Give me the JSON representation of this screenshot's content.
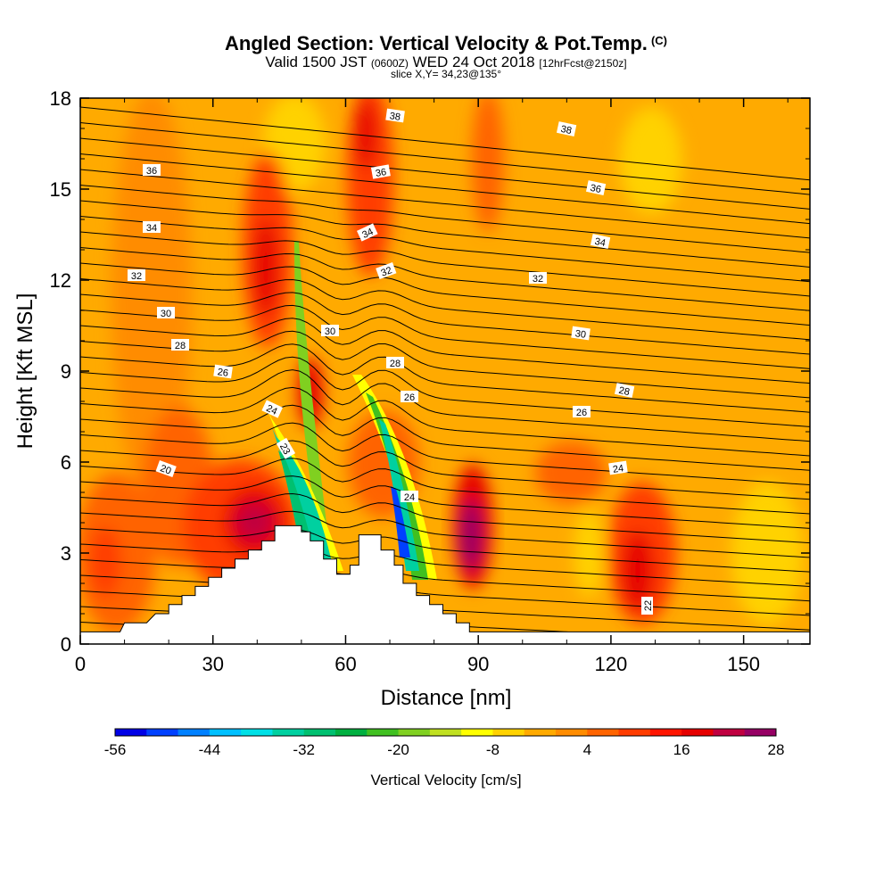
{
  "header": {
    "title": "Angled Section: Vertical Velocity & Pot.Temp.",
    "copyright": "(C)",
    "valid_prefix": "Valid 1500 JST",
    "valid_utc": "(0600Z)",
    "valid_date": "WED 24 Oct 2018",
    "forecast": "[12hrFcst@2150z]",
    "slice": "slice X,Y= 34,23@135°"
  },
  "chart_data": {
    "type": "heatmap",
    "xlabel": "Distance [nm]",
    "ylabel": "Height [Kft MSL]",
    "xlim": [
      0,
      165
    ],
    "ylim": [
      0,
      18
    ],
    "xticks": [
      0,
      30,
      60,
      90,
      120,
      150
    ],
    "yticks": [
      0,
      3,
      6,
      9,
      12,
      15,
      18
    ],
    "colorbar": {
      "label": "Vertical Velocity [cm/s]",
      "min": -56,
      "max": 28,
      "step": 4,
      "tick_labels": [
        "-56",
        "-44",
        "-32",
        "-20",
        "-8",
        "4",
        "16",
        "28"
      ],
      "colors": [
        "#0000e6",
        "#0040ff",
        "#0080ff",
        "#00c0ff",
        "#00e0e6",
        "#00d0a0",
        "#00c070",
        "#00b040",
        "#40c020",
        "#80d020",
        "#c0e020",
        "#ffff00",
        "#ffd200",
        "#ffaa00",
        "#ff8c00",
        "#ff6400",
        "#ff3c00",
        "#ff1400",
        "#e60000",
        "#c00040",
        "#960064"
      ]
    },
    "theta_contour_labels": [
      "38",
      "38",
      "36",
      "36",
      "36",
      "34",
      "34",
      "34",
      "32",
      "32",
      "32",
      "30",
      "30",
      "30",
      "28",
      "28",
      "28",
      "26",
      "26",
      "26",
      "24",
      "24",
      "24",
      "23",
      "22",
      "20"
    ],
    "terrain_top_kft": [
      [
        0,
        0.4
      ],
      [
        9,
        0.4
      ],
      [
        10,
        0.7
      ],
      [
        15,
        0.7
      ],
      [
        17,
        1.0
      ],
      [
        20,
        1.0
      ],
      [
        20,
        1.3
      ],
      [
        23,
        1.3
      ],
      [
        23,
        1.6
      ],
      [
        26,
        1.6
      ],
      [
        26,
        1.9
      ],
      [
        29,
        1.9
      ],
      [
        29,
        2.2
      ],
      [
        32,
        2.2
      ],
      [
        32,
        2.5
      ],
      [
        35,
        2.5
      ],
      [
        35,
        2.8
      ],
      [
        38,
        2.8
      ],
      [
        38,
        3.1
      ],
      [
        41,
        3.1
      ],
      [
        41,
        3.4
      ],
      [
        44,
        3.4
      ],
      [
        44,
        3.9
      ],
      [
        47,
        3.9
      ],
      [
        47,
        3.9
      ],
      [
        50,
        3.9
      ],
      [
        50,
        3.7
      ],
      [
        52,
        3.7
      ],
      [
        52,
        3.4
      ],
      [
        55,
        3.4
      ],
      [
        55,
        2.8
      ],
      [
        58,
        2.8
      ],
      [
        58,
        2.3
      ],
      [
        61,
        2.3
      ],
      [
        61,
        2.6
      ],
      [
        63,
        2.6
      ],
      [
        63,
        3.6
      ],
      [
        68,
        3.6
      ],
      [
        68,
        3.1
      ],
      [
        71,
        3.1
      ],
      [
        71,
        2.6
      ],
      [
        73,
        2.6
      ],
      [
        73,
        2.0
      ],
      [
        76,
        2.0
      ],
      [
        76,
        1.6
      ],
      [
        79,
        1.6
      ],
      [
        79,
        1.3
      ],
      [
        82,
        1.3
      ],
      [
        82,
        1.0
      ],
      [
        85,
        1.0
      ],
      [
        85,
        0.7
      ],
      [
        88,
        0.7
      ],
      [
        88,
        0.4
      ],
      [
        165,
        0.4
      ]
    ]
  }
}
